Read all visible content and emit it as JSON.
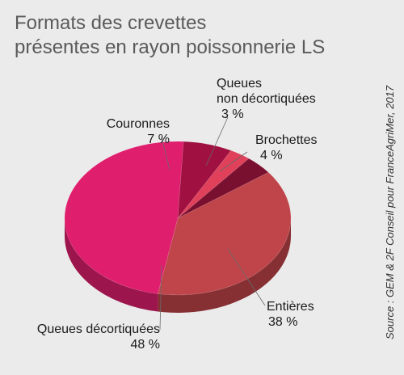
{
  "header": {
    "title_line1": "Formats des crevettes",
    "title_line2": "présentes en rayon poissonnerie LS"
  },
  "source": "Source : GEM & 2F Conseil pour FranceAgriMer, 2017",
  "chart_data": {
    "type": "pie",
    "style": "3d",
    "legend": "none",
    "slices": [
      {
        "label_lines": [
          "Queues",
          "non décortiquées"
        ],
        "value": 3,
        "value_label": "3 %",
        "color": "#e0405a"
      },
      {
        "label_lines": [
          "Brochettes"
        ],
        "value": 4,
        "value_label": "4 %",
        "color": "#7a1030"
      },
      {
        "label_lines": [
          "Entières"
        ],
        "value": 38,
        "value_label": "38 %",
        "color": "#c0454a"
      },
      {
        "label_lines": [
          "Queues décortiquées"
        ],
        "value": 48,
        "value_label": "48 %",
        "color": "#e01e6e"
      },
      {
        "label_lines": [
          "Couronnes"
        ],
        "value": 7,
        "value_label": "7 %",
        "color": "#a01040"
      }
    ]
  }
}
